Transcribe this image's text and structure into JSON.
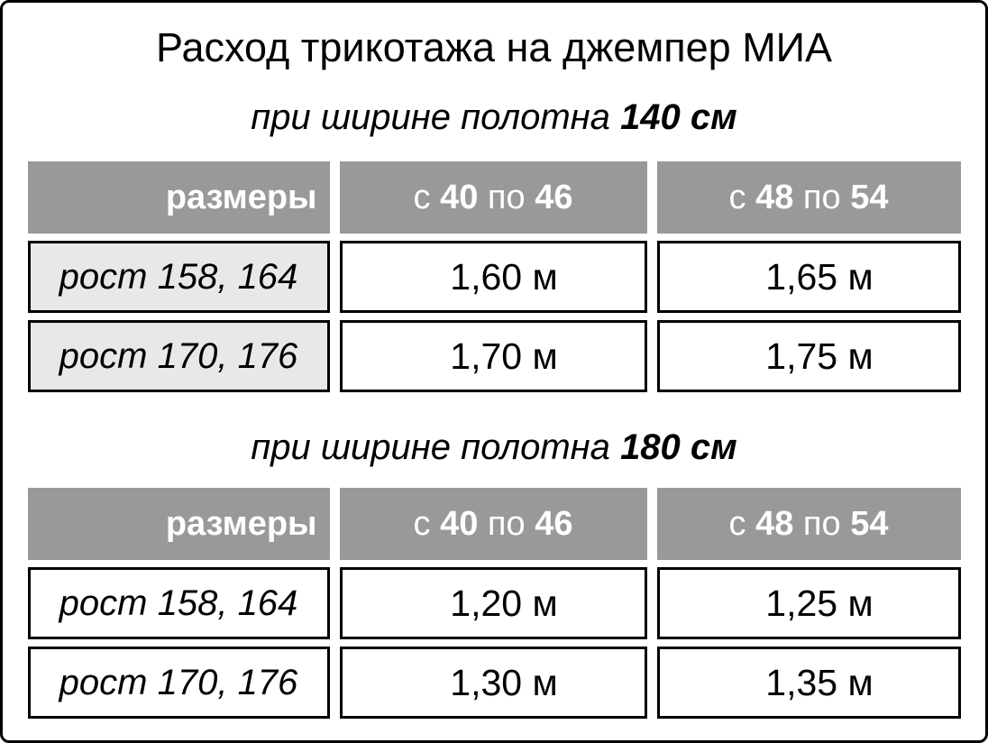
{
  "title": "Расход трикотажа на джемпер МИА",
  "colors": {
    "header_bg": "#999999",
    "header_text": "#ffffff",
    "label_bg_table_140": "#e8e8e8",
    "cell_bg": "#ffffff",
    "border": "#000000",
    "text": "#000000"
  },
  "tables": [
    {
      "caption": {
        "prefix": "при ширине полотна",
        "width": "140 см"
      },
      "header": {
        "sizes_label": "размеры",
        "range1": {
          "from_word": "с",
          "from": "40",
          "to_word": "по",
          "to": "46"
        },
        "range2": {
          "from_word": "с",
          "from": "48",
          "to_word": "по",
          "to": "54"
        }
      },
      "rows": [
        {
          "label": "рост 158, 164",
          "values": [
            "1,60 м",
            "1,65 м"
          ]
        },
        {
          "label": "рост 170, 176",
          "values": [
            "1,70 м",
            "1,75 м"
          ]
        }
      ]
    },
    {
      "caption": {
        "prefix": "при ширине полотна",
        "width": "180 см"
      },
      "header": {
        "sizes_label": "размеры",
        "range1": {
          "from_word": "с",
          "from": "40",
          "to_word": "по",
          "to": "46"
        },
        "range2": {
          "from_word": "с",
          "from": "48",
          "to_word": "по",
          "to": "54"
        }
      },
      "rows": [
        {
          "label": "рост 158, 164",
          "values": [
            "1,20 м",
            "1,25 м"
          ]
        },
        {
          "label": "рост 170, 176",
          "values": [
            "1,30 м",
            "1,35 м"
          ]
        }
      ]
    }
  ],
  "chart_data": [
    {
      "type": "table",
      "title": "Расход трикотажа на джемпер МИА",
      "subtitle": "при ширине полотна 140 см",
      "columns": [
        "размеры",
        "с 40 по 46",
        "с 48 по 54"
      ],
      "rows": [
        [
          "рост 158, 164",
          "1,60 м",
          "1,65 м"
        ],
        [
          "рост 170, 176",
          "1,70 м",
          "1,75 м"
        ]
      ]
    },
    {
      "type": "table",
      "title": "Расход трикотажа на джемпер МИА",
      "subtitle": "при ширине полотна 180 см",
      "columns": [
        "размеры",
        "с 40 по 46",
        "с 48 по 54"
      ],
      "rows": [
        [
          "рост 158, 164",
          "1,20 м",
          "1,25 м"
        ],
        [
          "рост 170, 176",
          "1,30 м",
          "1,35 м"
        ]
      ]
    }
  ]
}
